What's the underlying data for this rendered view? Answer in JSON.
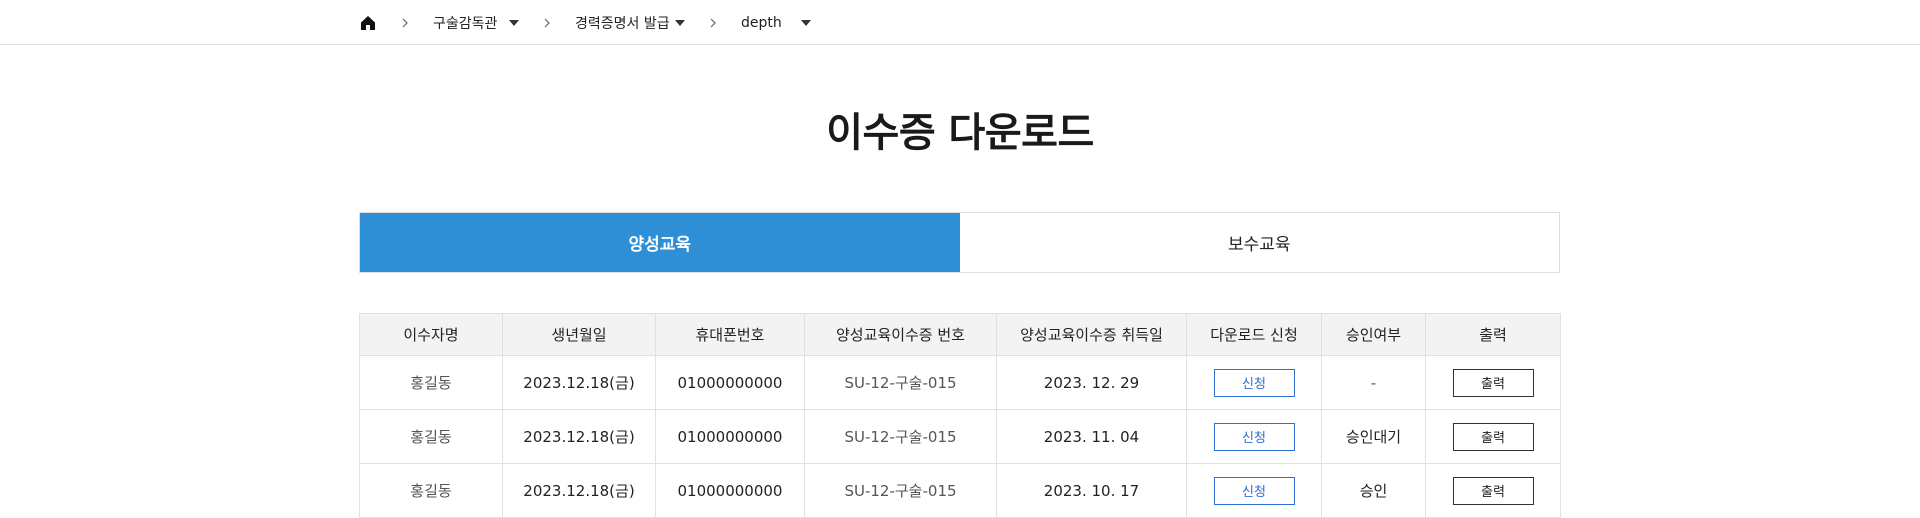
{
  "breadcrumb": {
    "home_icon": "home-icon",
    "items": [
      {
        "label": "구술감독관"
      },
      {
        "label": "경력증명서 발급"
      },
      {
        "label": "depth"
      }
    ]
  },
  "page": {
    "title": "이수증 다운로드"
  },
  "tabs": [
    {
      "label": "양성교육",
      "active": true
    },
    {
      "label": "보수교육",
      "active": false
    }
  ],
  "table": {
    "headers": [
      "이수자명",
      "생년월일",
      "휴대폰번호",
      "양성교육이수증 번호",
      "양성교육이수증 취득일",
      "다운로드 신청",
      "승인여부",
      "출력"
    ],
    "rows": [
      {
        "name": "홍길동",
        "birth": "2023.12.18(금)",
        "phone": "01000000000",
        "cert_no": "SU-12-구술-015",
        "acquired": "2023. 12. 29",
        "apply_label": "신청",
        "approval": "-",
        "print_label": "출력"
      },
      {
        "name": "홍길동",
        "birth": "2023.12.18(금)",
        "phone": "01000000000",
        "cert_no": "SU-12-구술-015",
        "acquired": "2023. 11. 04",
        "apply_label": "신청",
        "approval": "승인대기",
        "print_label": "출력"
      },
      {
        "name": "홍길동",
        "birth": "2023.12.18(금)",
        "phone": "01000000000",
        "cert_no": "SU-12-구술-015",
        "acquired": "2023. 10. 17",
        "apply_label": "신청",
        "approval": "승인",
        "print_label": "출력"
      }
    ]
  },
  "colors": {
    "tab_active": "#2f8fd6",
    "apply_button": "#2f6fd0"
  }
}
